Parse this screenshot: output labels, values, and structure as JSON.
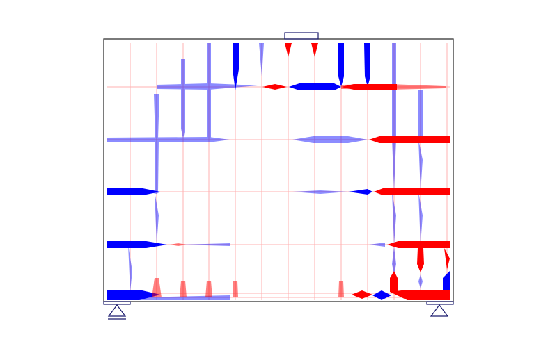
{
  "diagram": {
    "colors": {
      "compression": "#0000ff",
      "tension": "#ff0000",
      "frame": "#333333",
      "supports": "#1a1a6e"
    },
    "icons": [
      "pin-support-icon",
      "roller-support-icon",
      "load-plate-icon"
    ]
  }
}
